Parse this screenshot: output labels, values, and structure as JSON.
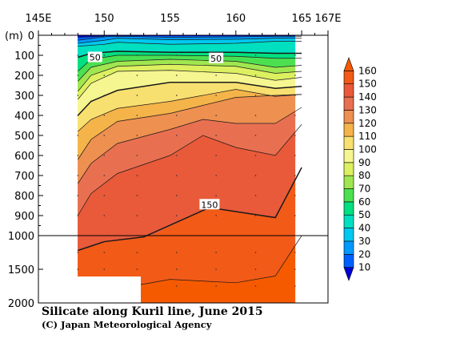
{
  "chart_data": {
    "type": "heatmap",
    "title": "Silicate along Kuril line, June 2015",
    "credit": "(C) Japan Meteorological Agency",
    "x_axis": {
      "ticks": [
        145,
        150,
        155,
        160,
        165,
        167
      ],
      "tick_labels": [
        "145E",
        "150",
        "155",
        "160",
        "165",
        "167E"
      ],
      "range": [
        145,
        167
      ]
    },
    "y_axis": {
      "unit_label": "(m)",
      "upper_ticks": [
        0,
        100,
        200,
        300,
        400,
        500,
        600,
        700,
        800,
        900,
        1000
      ],
      "lower_ticks": [
        1000,
        1500,
        2000
      ],
      "tick_labels": [
        "0",
        "100",
        "200",
        "300",
        "400",
        "500",
        "600",
        "700",
        "800",
        "900",
        "1000",
        "1500",
        "2000"
      ],
      "scale_break_depth": 1000
    },
    "colorbar": {
      "levels": [
        10,
        20,
        30,
        40,
        50,
        60,
        70,
        80,
        90,
        100,
        110,
        120,
        130,
        140,
        150,
        160
      ],
      "tick_labels": [
        "10",
        "20",
        "30",
        "40",
        "50",
        "60",
        "70",
        "80",
        "90",
        "100",
        "110",
        "120",
        "130",
        "140",
        "150",
        "160"
      ],
      "colors": [
        "#0000d6",
        "#005fff",
        "#0099ff",
        "#00c8f0",
        "#00dfc0",
        "#00e080",
        "#4ce050",
        "#a0e650",
        "#dcf060",
        "#f6f690",
        "#f8e070",
        "#f4b44a",
        "#ee9050",
        "#e87050",
        "#e85a3a",
        "#f25a18",
        "#f65a00"
      ]
    },
    "stations": [
      148,
      149,
      150,
      151,
      152.5,
      154,
      155.5,
      157,
      158.5,
      160,
      161.5,
      163,
      164.5
    ],
    "station_depths": [
      1590,
      1590,
      1590,
      1590,
      2000,
      2000,
      2000,
      2000,
      2000,
      2000,
      2000,
      2000,
      2000
    ],
    "contour_labels": [
      {
        "value": "50",
        "lon": 149.3,
        "depth": 110
      },
      {
        "value": "50",
        "lon": 158.5,
        "depth": 115
      },
      {
        "value": "150",
        "lon": 158.0,
        "depth": 845
      }
    ],
    "series": [
      {
        "name": "10",
        "x": [
          148,
          150
        ],
        "y": [
          10,
          5
        ]
      },
      {
        "name": "20",
        "x": [
          148,
          150,
          151,
          155,
          160,
          163,
          165
        ],
        "y": [
          25,
          8,
          5,
          10,
          8,
          5,
          5
        ]
      },
      {
        "name": "30",
        "x": [
          148,
          150,
          151,
          155,
          160,
          163,
          165
        ],
        "y": [
          40,
          25,
          15,
          22,
          20,
          15,
          15
        ]
      },
      {
        "name": "40",
        "x": [
          148,
          150,
          151,
          155,
          160,
          163,
          165
        ],
        "y": [
          55,
          45,
          35,
          45,
          40,
          30,
          30
        ]
      },
      {
        "name": "50",
        "x": [
          148,
          149,
          151,
          155,
          160,
          163,
          165
        ],
        "y": [
          110,
          90,
          80,
          85,
          85,
          90,
          90
        ]
      },
      {
        "name": "60",
        "x": [
          148,
          149,
          151,
          155,
          160,
          163,
          165
        ],
        "y": [
          180,
          120,
          100,
          100,
          105,
          115,
          115
        ]
      },
      {
        "name": "70",
        "x": [
          148,
          149,
          151,
          155,
          160,
          163,
          165
        ],
        "y": [
          230,
          160,
          130,
          120,
          130,
          160,
          150
        ]
      },
      {
        "name": "80",
        "x": [
          148,
          149,
          151,
          155,
          160,
          163,
          165
        ],
        "y": [
          280,
          200,
          155,
          145,
          155,
          190,
          180
        ]
      },
      {
        "name": "90",
        "x": [
          148,
          149,
          151,
          155,
          160,
          163,
          165
        ],
        "y": [
          320,
          240,
          180,
          175,
          190,
          225,
          210
        ]
      },
      {
        "name": "100",
        "x": [
          148,
          149,
          151,
          155,
          160,
          163,
          165
        ],
        "y": [
          400,
          330,
          275,
          235,
          235,
          265,
          255
        ]
      },
      {
        "name": "110",
        "x": [
          148,
          149,
          151,
          155,
          160,
          163,
          165
        ],
        "y": [
          480,
          420,
          365,
          330,
          270,
          305,
          295
        ]
      },
      {
        "name": "120",
        "x": [
          148,
          149,
          151,
          155,
          157.5,
          160,
          163,
          165
        ],
        "y": [
          620,
          520,
          430,
          390,
          350,
          310,
          300,
          295
        ]
      },
      {
        "name": "130",
        "x": [
          148,
          149,
          151,
          155,
          157.5,
          160,
          163,
          165
        ],
        "y": [
          740,
          640,
          540,
          470,
          420,
          440,
          440,
          360
        ]
      },
      {
        "name": "140",
        "x": [
          148,
          149,
          151,
          155,
          157.5,
          160,
          163,
          165
        ],
        "y": [
          900,
          790,
          690,
          600,
          500,
          560,
          600,
          445
        ]
      },
      {
        "name": "150",
        "x": [
          148,
          150,
          153,
          158,
          163,
          165
        ],
        "y": [
          1220,
          1090,
          1020,
          860,
          910,
          660
        ]
      },
      {
        "name": "160",
        "x": [
          148,
          151,
          153,
          155,
          160,
          163,
          165
        ],
        "y": [
          1850,
          1780,
          1720,
          1650,
          1700,
          1600,
          1000
        ]
      }
    ]
  }
}
